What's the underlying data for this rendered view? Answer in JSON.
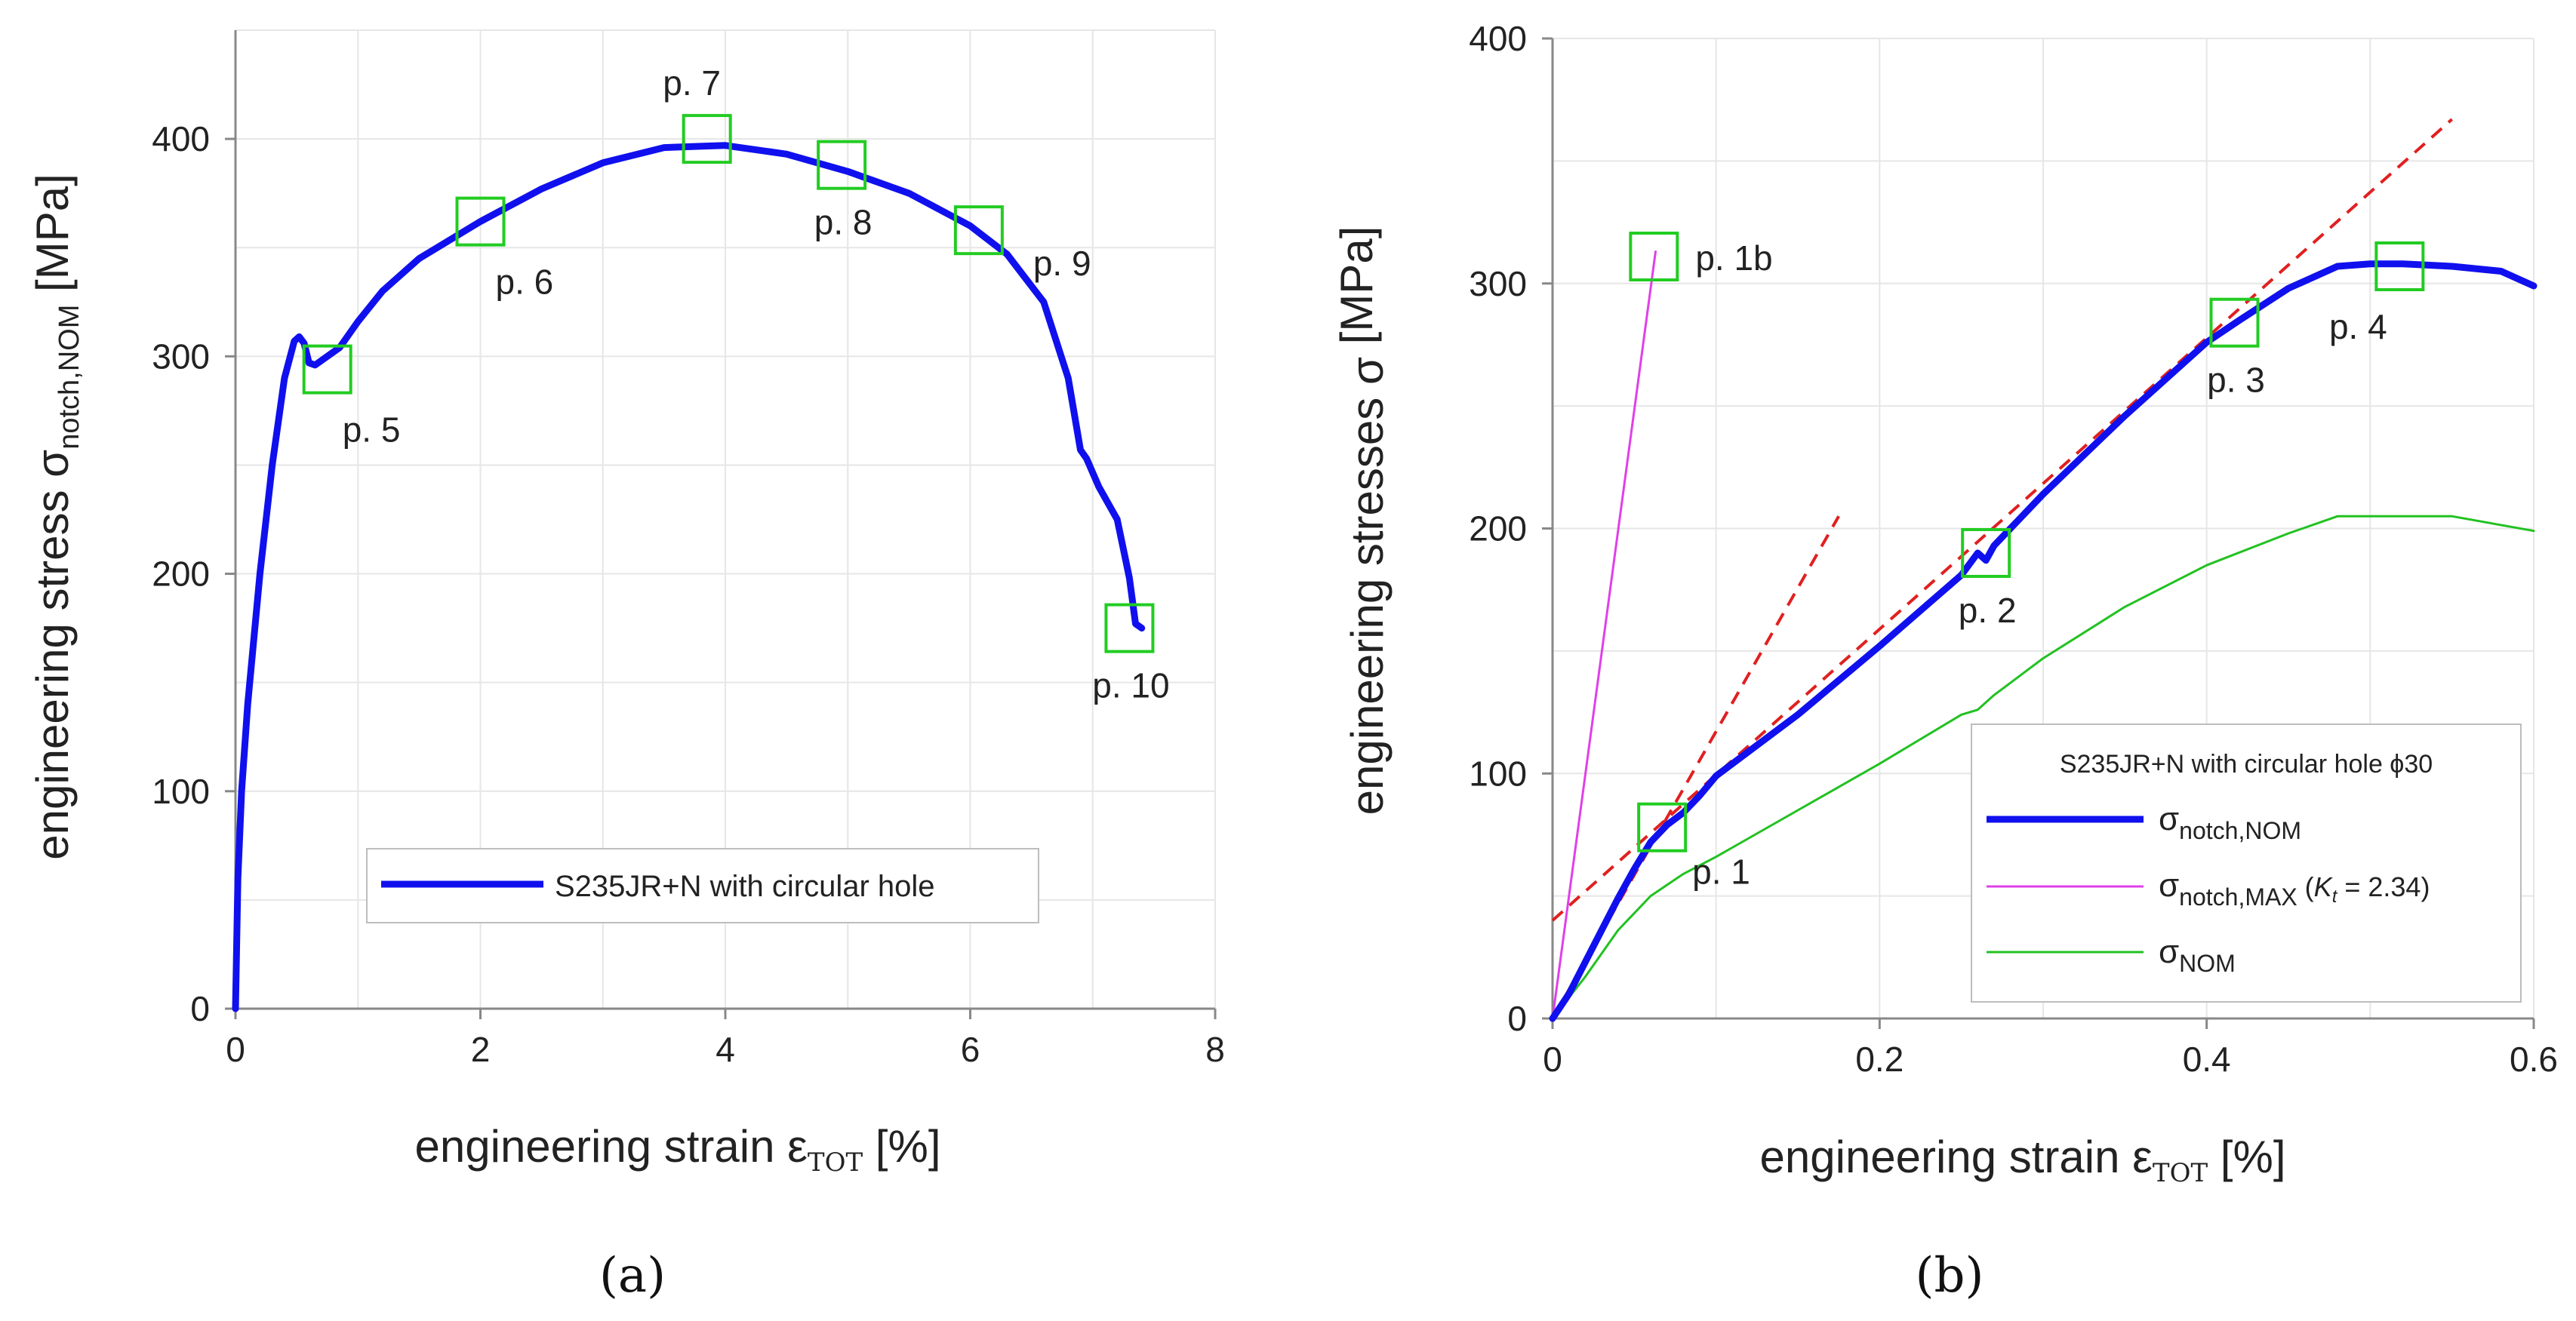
{
  "chart_data": [
    {
      "panel": "(a)",
      "type": "line",
      "xlabel": {
        "main": "engineering strain ε",
        "sub": "TOT",
        "unit": " [%]"
      },
      "ylabel": {
        "main": "engineering stress σ",
        "sub": "notch,NOM",
        "unit": " [MPa]"
      },
      "xlim": [
        0,
        8
      ],
      "ylim": [
        0,
        450
      ],
      "xticks": [
        0,
        2,
        4,
        6,
        8
      ],
      "yticks": [
        0,
        100,
        200,
        300,
        400
      ],
      "grid": true,
      "legend": {
        "placement": "bottom-center",
        "label": "S235JR+N with circular hole"
      },
      "series": [
        {
          "name": "S235JR+N with circular hole",
          "color": "#1010ee",
          "x": [
            0,
            0.02,
            0.05,
            0.1,
            0.2,
            0.3,
            0.4,
            0.48,
            0.52,
            0.56,
            0.6,
            0.65,
            0.75,
            0.85,
            1.0,
            1.2,
            1.5,
            2.0,
            2.5,
            3.0,
            3.5,
            4.0,
            4.5,
            5.0,
            5.5,
            6.0,
            6.3,
            6.6,
            6.8,
            6.9,
            6.95,
            7.05,
            7.2,
            7.3,
            7.35,
            7.4
          ],
          "y": [
            0,
            60,
            100,
            140,
            200,
            250,
            290,
            307,
            309,
            306,
            297,
            296,
            300,
            304,
            316,
            330,
            345,
            362,
            377,
            389,
            396,
            397,
            393,
            385,
            375,
            360,
            347,
            325,
            290,
            257,
            253,
            240,
            225,
            198,
            177,
            175
          ]
        }
      ],
      "markers": [
        {
          "label": "p. 5",
          "x": 0.75,
          "y": 294,
          "label_pos": "below-right"
        },
        {
          "label": "p. 6",
          "x": 2.0,
          "y": 362,
          "label_pos": "below-right"
        },
        {
          "label": "p. 7",
          "x": 3.85,
          "y": 400,
          "label_pos": "above"
        },
        {
          "label": "p. 8",
          "x": 4.95,
          "y": 388,
          "label_pos": "below"
        },
        {
          "label": "p. 9",
          "x": 6.07,
          "y": 358,
          "label_pos": "right"
        },
        {
          "label": "p. 10",
          "x": 7.3,
          "y": 175,
          "label_pos": "below"
        }
      ]
    },
    {
      "panel": "(b)",
      "type": "line",
      "xlabel": {
        "main": "engineering strain ε",
        "sub": "TOT",
        "unit": " [%]"
      },
      "ylabel": {
        "main": "engineering  stresses σ",
        "sub": "",
        "unit": "  [MPa]"
      },
      "xlim": [
        0,
        0.6
      ],
      "ylim": [
        0,
        400
      ],
      "xticks": [
        "0",
        "0.2",
        "0.4",
        "0.6"
      ],
      "yticks": [
        0,
        100,
        200,
        300,
        400
      ],
      "grid": true,
      "legend": {
        "placement": "bottom-right",
        "title": "S235JR+N with circular hole ϕ30",
        "entries": [
          {
            "main": "σ",
            "sub": "notch,NOM",
            "extra": ""
          },
          {
            "main": "σ",
            "sub": "notch,MAX",
            "extra": " (",
            "kt": "K",
            "kt_sub": "t",
            "kt_val": " = 2.34)"
          },
          {
            "main": "σ",
            "sub": "NOM",
            "extra": ""
          }
        ]
      },
      "series": [
        {
          "name": "σ notch,NOM",
          "color": "#1010ee",
          "x": [
            0,
            0.01,
            0.02,
            0.03,
            0.04,
            0.05,
            0.06,
            0.07,
            0.08,
            0.09,
            0.1,
            0.12,
            0.15,
            0.2,
            0.25,
            0.26,
            0.265,
            0.27,
            0.3,
            0.35,
            0.4,
            0.42,
            0.45,
            0.48,
            0.5,
            0.52,
            0.55,
            0.58,
            0.6
          ],
          "y": [
            0,
            10,
            23,
            36,
            49,
            61,
            72,
            79,
            84,
            91,
            99,
            109,
            124,
            152,
            181,
            190,
            187,
            193,
            214,
            246,
            276,
            285,
            298,
            307,
            308,
            308,
            307,
            305,
            299
          ]
        },
        {
          "name": "σ notch,MAX (Kt = 2.34)",
          "color": "#e040e8",
          "x": [
            0,
            0.063
          ],
          "y": [
            0,
            313
          ]
        },
        {
          "name": "σ NOM",
          "color": "#22c122",
          "x": [
            0,
            0.02,
            0.04,
            0.06,
            0.08,
            0.1,
            0.15,
            0.2,
            0.25,
            0.26,
            0.27,
            0.3,
            0.35,
            0.4,
            0.45,
            0.48,
            0.5,
            0.55,
            0.6
          ],
          "y": [
            0,
            17,
            36,
            50,
            59,
            66,
            85,
            104,
            124,
            126,
            132,
            147,
            168,
            185,
            198,
            205,
            205,
            205,
            199
          ]
        }
      ],
      "reference_lines": [
        {
          "color": "#e02020",
          "style": "dashed",
          "x": [
            0,
            0.175
          ],
          "y": [
            0,
            205
          ]
        },
        {
          "color": "#e02020",
          "style": "dashed",
          "x": [
            0,
            0.55
          ],
          "y": [
            40,
            367
          ]
        }
      ],
      "markers": [
        {
          "label": "p. 1b",
          "x": 0.062,
          "y": 311,
          "label_pos": "right"
        },
        {
          "label": "p. 1",
          "x": 0.067,
          "y": 78,
          "label_pos": "below-right"
        },
        {
          "label": "p. 2",
          "x": 0.265,
          "y": 190,
          "label_pos": "below"
        },
        {
          "label": "p. 3",
          "x": 0.417,
          "y": 284,
          "label_pos": "below"
        },
        {
          "label": "p. 4",
          "x": 0.518,
          "y": 307,
          "label_pos": "below-left"
        }
      ]
    }
  ],
  "captions": {
    "a": "(a)",
    "b": "(b)"
  }
}
